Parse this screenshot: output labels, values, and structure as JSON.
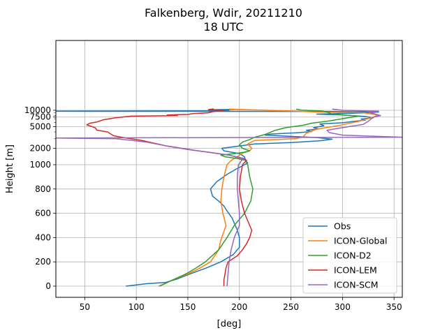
{
  "chart_data": {
    "type": "line",
    "title": "Falkenberg, Wdir, 20211210",
    "subtitle": "18 UTC",
    "xlabel": "[deg]",
    "ylabel": "Height [m]",
    "xlim": [
      22,
      358
    ],
    "x_ticks": [
      50,
      100,
      150,
      200,
      250,
      300,
      350
    ],
    "y_ticks": [
      {
        "value": 0,
        "label": "0"
      },
      {
        "value": 200,
        "label": "200"
      },
      {
        "value": 400,
        "label": "400"
      },
      {
        "value": 600,
        "label": "600"
      },
      {
        "value": 800,
        "label": "800"
      },
      {
        "value": 1000,
        "label": "1000"
      },
      {
        "value": 2000,
        "label": "2000"
      },
      {
        "value": 5000,
        "label": "5000"
      },
      {
        "value": 7500,
        "label": "7500"
      },
      {
        "value": 10000,
        "label": "10000"
      }
    ],
    "y_scale": "piecewise: linear 0-1000 m, logarithmic 1000-10000 m",
    "grid": true,
    "legend_position": "lower right",
    "series": [
      {
        "name": "Obs",
        "color": "#1f77b4",
        "points": [
          [
            90,
            0
          ],
          [
            110,
            20
          ],
          [
            128,
            30
          ],
          [
            140,
            60
          ],
          [
            152,
            100
          ],
          [
            168,
            150
          ],
          [
            182,
            200
          ],
          [
            194,
            260
          ],
          [
            200,
            320
          ],
          [
            200,
            400
          ],
          [
            198,
            460
          ],
          [
            196,
            500
          ],
          [
            193,
            560
          ],
          [
            188,
            620
          ],
          [
            185,
            660
          ],
          [
            180,
            700
          ],
          [
            174,
            740
          ],
          [
            172,
            800
          ],
          [
            178,
            860
          ],
          [
            188,
            920
          ],
          [
            196,
            960
          ],
          [
            205,
            1000
          ],
          [
            208,
            1080
          ],
          [
            206,
            1200
          ],
          [
            205,
            1400
          ],
          [
            200,
            1600
          ],
          [
            185,
            1800
          ],
          [
            183,
            2000
          ],
          [
            195,
            2150
          ],
          [
            215,
            2400
          ],
          [
            250,
            2550
          ],
          [
            278,
            2750
          ],
          [
            290,
            2950
          ],
          [
            275,
            3150
          ],
          [
            245,
            3350
          ],
          [
            225,
            3500
          ],
          [
            230,
            3650
          ],
          [
            255,
            3850
          ],
          [
            270,
            4050
          ],
          [
            265,
            4300
          ],
          [
            277,
            4550
          ],
          [
            272,
            4800
          ],
          [
            282,
            5200
          ],
          [
            278,
            5600
          ],
          [
            300,
            5900
          ],
          [
            312,
            6300
          ],
          [
            322,
            6600
          ],
          [
            318,
            6900
          ],
          [
            330,
            7300
          ],
          [
            322,
            7700
          ],
          [
            300,
            8200
          ],
          [
            275,
            8500
          ],
          [
            320,
            8900
          ],
          [
            335,
            9300
          ],
          [
            290,
            9500
          ],
          [
            200,
            9550
          ],
          [
            0,
            9600
          ],
          [
            170,
            9800
          ],
          [
            190,
            10000
          ],
          [
            170,
            10200
          ],
          [
            195,
            10400
          ]
        ]
      },
      {
        "name": "ICON-Global",
        "color": "#ff7f0e",
        "points": [
          [
            123,
            0
          ],
          [
            135,
            50
          ],
          [
            150,
            100
          ],
          [
            162,
            150
          ],
          [
            172,
            200
          ],
          [
            180,
            300
          ],
          [
            182,
            380
          ],
          [
            185,
            450
          ],
          [
            187,
            500
          ],
          [
            184,
            600
          ],
          [
            182,
            700
          ],
          [
            183,
            800
          ],
          [
            185,
            900
          ],
          [
            188,
            1000
          ],
          [
            192,
            1200
          ],
          [
            198,
            1400
          ],
          [
            202,
            1600
          ],
          [
            210,
            1800
          ],
          [
            212,
            2000
          ],
          [
            210,
            2200
          ],
          [
            208,
            2400
          ],
          [
            215,
            2800
          ],
          [
            255,
            3000
          ],
          [
            262,
            3300
          ],
          [
            265,
            3800
          ],
          [
            275,
            4500
          ],
          [
            295,
            5200
          ],
          [
            315,
            6200
          ],
          [
            330,
            7500
          ],
          [
            335,
            8200
          ],
          [
            320,
            9000
          ],
          [
            275,
            9300
          ],
          [
            250,
            9700
          ],
          [
            210,
            10200
          ],
          [
            190,
            10500
          ]
        ]
      },
      {
        "name": "ICON-D2",
        "color": "#2ca02c",
        "points": [
          [
            122,
            0
          ],
          [
            135,
            50
          ],
          [
            148,
            100
          ],
          [
            158,
            150
          ],
          [
            167,
            200
          ],
          [
            180,
            300
          ],
          [
            188,
            400
          ],
          [
            195,
            500
          ],
          [
            205,
            600
          ],
          [
            211,
            700
          ],
          [
            213,
            800
          ],
          [
            210,
            900
          ],
          [
            208,
            1000
          ],
          [
            206,
            1200
          ],
          [
            198,
            1300
          ],
          [
            186,
            1400
          ],
          [
            182,
            1500
          ],
          [
            195,
            1600
          ],
          [
            205,
            1700
          ],
          [
            210,
            1800
          ],
          [
            203,
            2000
          ],
          [
            200,
            2300
          ],
          [
            203,
            2600
          ],
          [
            210,
            2900
          ],
          [
            215,
            3200
          ],
          [
            225,
            3600
          ],
          [
            235,
            4300
          ],
          [
            245,
            4800
          ],
          [
            262,
            5300
          ],
          [
            270,
            5800
          ],
          [
            285,
            6300
          ],
          [
            300,
            7000
          ],
          [
            315,
            7800
          ],
          [
            290,
            8500
          ],
          [
            285,
            9300
          ],
          [
            280,
            9700
          ],
          [
            260,
            10100
          ],
          [
            255,
            10500
          ]
        ]
      },
      {
        "name": "ICON-LEM",
        "color": "#d62728",
        "points": [
          [
            185,
            0
          ],
          [
            185,
            50
          ],
          [
            186,
            100
          ],
          [
            187,
            150
          ],
          [
            189,
            200
          ],
          [
            198,
            250
          ],
          [
            203,
            300
          ],
          [
            207,
            350
          ],
          [
            210,
            400
          ],
          [
            212,
            460
          ],
          [
            210,
            500
          ],
          [
            205,
            600
          ],
          [
            202,
            700
          ],
          [
            200,
            800
          ],
          [
            201,
            900
          ],
          [
            203,
            1000
          ],
          [
            205,
            1100
          ],
          [
            207,
            1200
          ],
          [
            203,
            1300
          ],
          [
            190,
            1500
          ],
          [
            160,
            1800
          ],
          [
            130,
            2200
          ],
          [
            105,
            2800
          ],
          [
            90,
            3100
          ],
          [
            78,
            3400
          ],
          [
            75,
            3700
          ],
          [
            72,
            4000
          ],
          [
            62,
            4300
          ],
          [
            60,
            4800
          ],
          [
            52,
            5400
          ],
          [
            55,
            5800
          ],
          [
            62,
            6100
          ],
          [
            68,
            6700
          ],
          [
            80,
            7300
          ],
          [
            95,
            7800
          ],
          [
            140,
            8000
          ],
          [
            130,
            8200
          ],
          [
            150,
            8400
          ],
          [
            155,
            8700
          ],
          [
            170,
            9000
          ],
          [
            175,
            9500
          ],
          [
            185,
            10000
          ],
          [
            170,
            10300
          ],
          [
            175,
            10600
          ]
        ]
      },
      {
        "name": "ICON-SCM",
        "color": "#9467bd",
        "points": [
          [
            188,
            0
          ],
          [
            189,
            100
          ],
          [
            190,
            200
          ],
          [
            192,
            300
          ],
          [
            195,
            400
          ],
          [
            200,
            500
          ],
          [
            200,
            600
          ],
          [
            199,
            700
          ],
          [
            198,
            800
          ],
          [
            198,
            900
          ],
          [
            199,
            1000
          ],
          [
            201,
            1100
          ],
          [
            202,
            1200
          ],
          [
            205,
            1300
          ],
          [
            190,
            1500
          ],
          [
            170,
            1700
          ],
          [
            150,
            1900
          ],
          [
            130,
            2200
          ],
          [
            110,
            2600
          ],
          [
            95,
            2800
          ],
          [
            80,
            3000
          ],
          [
            22,
            3100
          ],
          [
            358,
            3200
          ],
          [
            300,
            3500
          ],
          [
            287,
            3900
          ],
          [
            285,
            4300
          ],
          [
            300,
            4800
          ],
          [
            320,
            5500
          ],
          [
            325,
            6300
          ],
          [
            330,
            7500
          ],
          [
            337,
            8000
          ],
          [
            330,
            8700
          ],
          [
            325,
            9200
          ],
          [
            335,
            9600
          ],
          [
            300,
            10000
          ],
          [
            290,
            10500
          ]
        ]
      }
    ]
  }
}
